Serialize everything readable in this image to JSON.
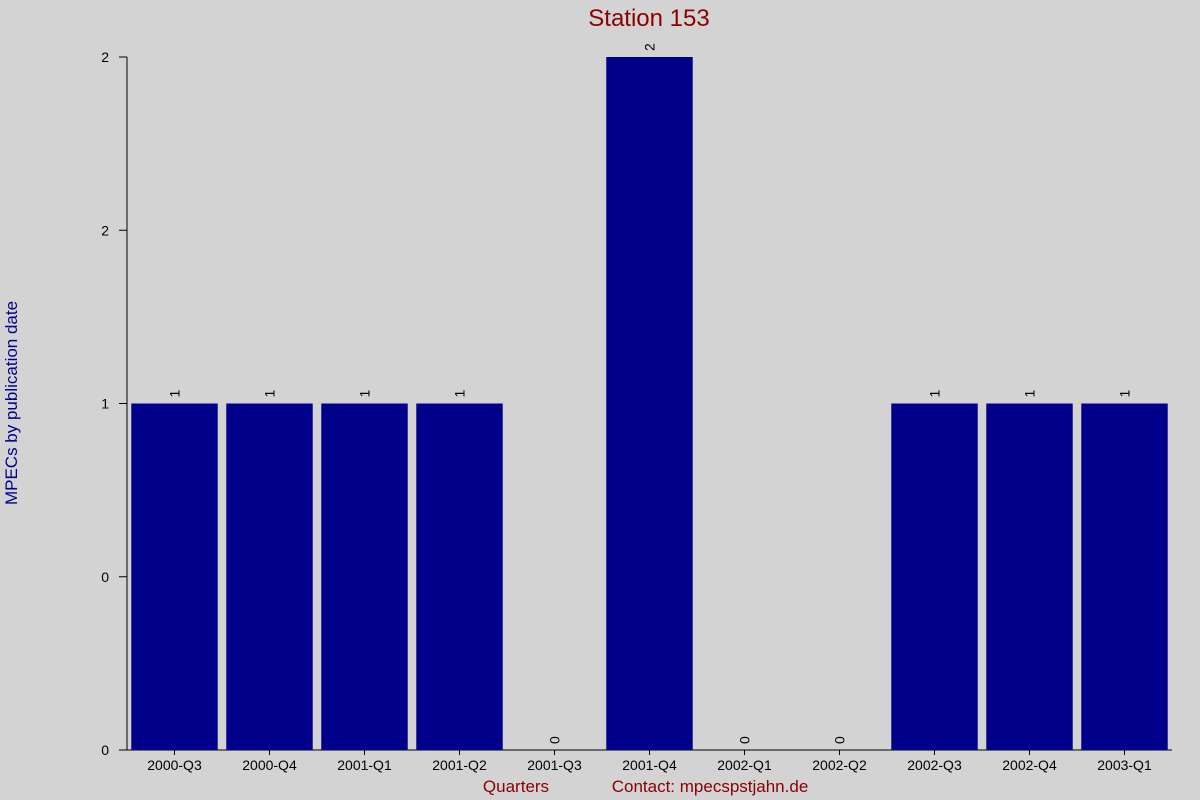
{
  "chart_data": {
    "type": "bar",
    "title": "Station 153",
    "x_label": "Quarters",
    "contact": "Contact: mpecspstjahn.de",
    "y_label": "MPECs by publication date",
    "categories": [
      "2000-Q3",
      "2000-Q4",
      "2001-Q1",
      "2001-Q2",
      "2001-Q3",
      "2001-Q4",
      "2002-Q1",
      "2002-Q2",
      "2002-Q3",
      "2002-Q4",
      "2003-Q1"
    ],
    "values": [
      1,
      1,
      1,
      1,
      0,
      2,
      0,
      0,
      1,
      1,
      1
    ],
    "color": "#00008b",
    "ylim": [
      0,
      2
    ],
    "yticks": [
      0,
      {
        "value": 0.5,
        "label": "0"
      },
      1,
      {
        "value": 1.5,
        "label": "2"
      },
      2
    ]
  }
}
